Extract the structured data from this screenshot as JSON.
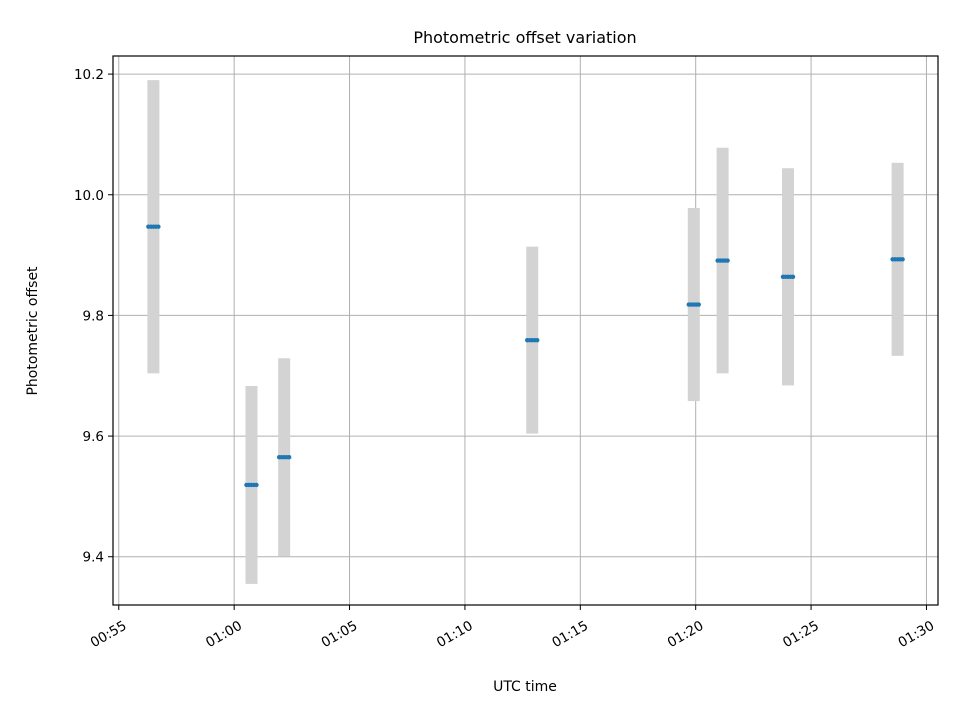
{
  "chart_data": {
    "type": "scatter",
    "title": "Photometric offset variation",
    "xlabel": "UTC time",
    "ylabel": "Photometric offset",
    "x_tick_labels": [
      "00:55",
      "01:00",
      "01:05",
      "01:10",
      "01:15",
      "01:20",
      "01:25",
      "01:30"
    ],
    "y_tick_labels": [
      "9.4",
      "9.6",
      "9.8",
      "10.0",
      "10.2"
    ],
    "y_ticks": [
      9.4,
      9.6,
      9.8,
      10.0,
      10.2
    ],
    "xlim": [
      "00:54:45",
      "01:30:30"
    ],
    "ylim": [
      9.32,
      10.23
    ],
    "grid": true,
    "series": [
      {
        "x": [
          "00:56:30",
          "01:00:45",
          "01:02:10",
          "01:12:55",
          "01:19:55",
          "01:21:10",
          "01:24:00",
          "01:28:45"
        ],
        "y": [
          9.947,
          9.519,
          9.565,
          9.759,
          9.818,
          9.891,
          9.864,
          9.893
        ],
        "y_error": [
          0.243,
          0.164,
          0.164,
          0.155,
          0.16,
          0.187,
          0.18,
          0.16
        ]
      }
    ],
    "colors": {
      "point": "#1f77b4",
      "error_bar": "#d3d3d3",
      "grid": "#b0b0b0"
    }
  }
}
